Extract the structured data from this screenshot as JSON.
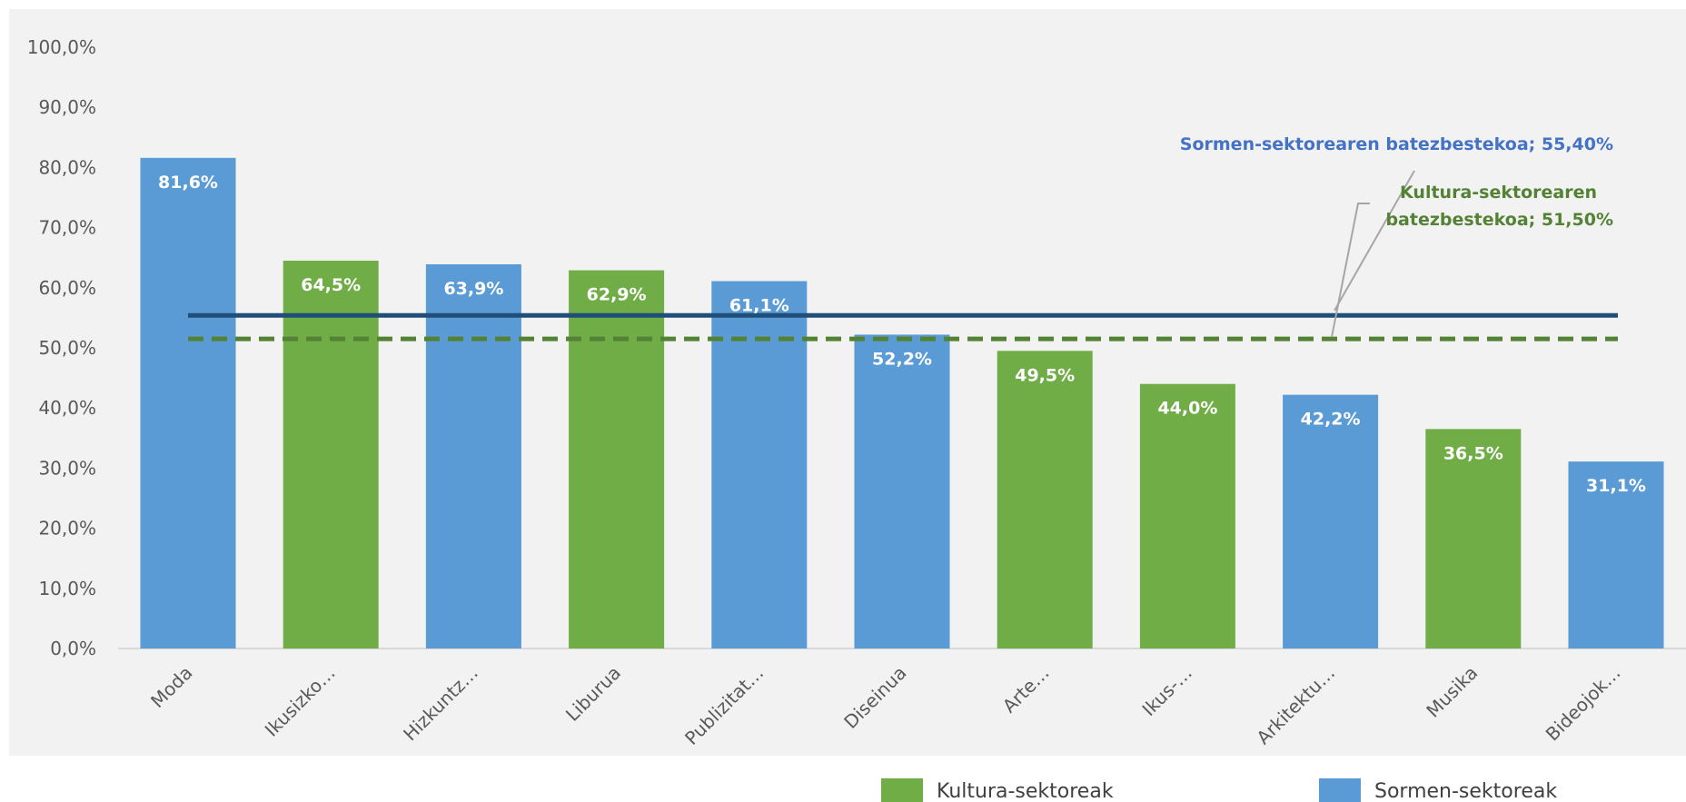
{
  "chart_data": {
    "type": "bar",
    "categories": [
      "Moda",
      "Ikusizko…",
      "Hizkuntz…",
      "Liburua",
      "Publizitat…",
      "Diseinua",
      "Arte…",
      "Ikus-…",
      "Arkitektu…",
      "Musika",
      "Bideojok…"
    ],
    "values": [
      81.6,
      64.5,
      63.9,
      62.9,
      61.1,
      52.2,
      49.5,
      44.0,
      42.2,
      36.5,
      31.1
    ],
    "value_labels": [
      "81,6%",
      "64,5%",
      "63,9%",
      "62,9%",
      "61,1%",
      "52,2%",
      "49,5%",
      "44,0%",
      "42,2%",
      "36,5%",
      "31,1%"
    ],
    "groups": [
      "sormen",
      "kultura",
      "sormen",
      "kultura",
      "sormen",
      "sormen",
      "kultura",
      "kultura",
      "sormen",
      "kultura",
      "sormen"
    ],
    "ylim": [
      0,
      100
    ],
    "y_ticks": [
      "0,0%",
      "10,0%",
      "20,0%",
      "30,0%",
      "40,0%",
      "50,0%",
      "60,0%",
      "70,0%",
      "80,0%",
      "90,0%",
      "100,0%"
    ],
    "grid": false,
    "legend_position": "bottom",
    "legend": [
      {
        "key": "kultura",
        "label": "Kultura-sektoreak",
        "color": "#70ad47"
      },
      {
        "key": "sormen",
        "label": "Sormen-sektoreak",
        "color": "#5b9bd5"
      }
    ],
    "reference_lines": [
      {
        "key": "sormen_avg",
        "value": 55.4,
        "style": "solid",
        "color": "#1f4e79",
        "label_lines": [
          "Sormen-sektorearen batezbestekoa; 55,40%"
        ],
        "label_color": "#4472c4"
      },
      {
        "key": "kultura_avg",
        "value": 51.5,
        "style": "dashed",
        "color": "#548235",
        "label_lines": [
          "Kultura-sektorearen",
          "batezbestekoa; 51,50%"
        ],
        "label_color": "#548235"
      }
    ],
    "colors": {
      "plot_background": "#f2f2f2",
      "axis": "#d9d9d9"
    }
  }
}
